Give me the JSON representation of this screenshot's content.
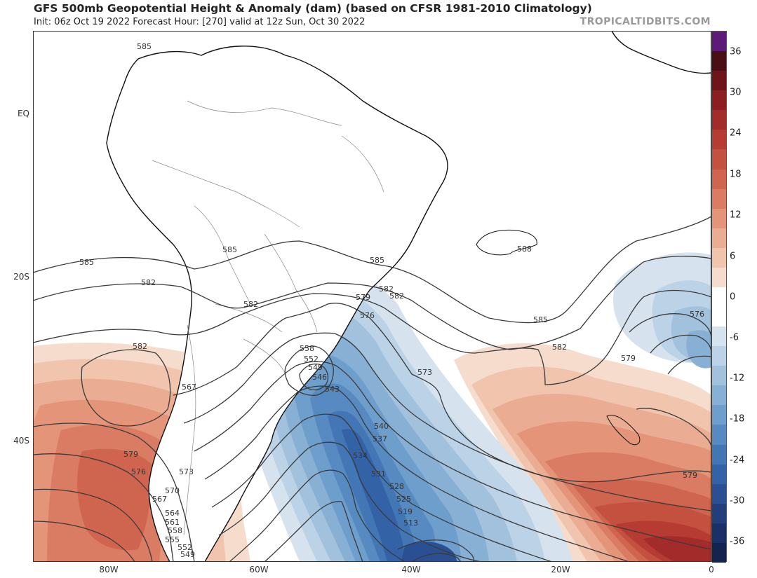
{
  "header": {
    "title": "GFS 500mb Geopotential Height & Anomaly (dam) (based on CFSR 1981-2010 Climatology)",
    "subtitle": "Init: 06z Oct 19 2022   Forecast Hour: [270]   valid at 12z Sun, Oct 30 2022",
    "brand": "TROPICALTIDBITS.COM"
  },
  "axes": {
    "lat_labels": [
      "EQ",
      "20S",
      "40S"
    ],
    "lon_labels": [
      "80W",
      "60W",
      "40W",
      "20W",
      "0"
    ]
  },
  "colorbar": {
    "labels": [
      "36",
      "30",
      "24",
      "18",
      "12",
      "6",
      "0",
      "-6",
      "-12",
      "-18",
      "-24",
      "-30",
      "-36"
    ],
    "colors": [
      "#5e1a78",
      "#4a0f14",
      "#6e141a",
      "#8c1e22",
      "#a32c2a",
      "#b63b33",
      "#c4503f",
      "#d0654f",
      "#da7c63",
      "#e39479",
      "#eaac92",
      "#f0c4ad",
      "#f6dccc",
      "#ffffff",
      "#ffffff",
      "#d6e3ef",
      "#bcd2e6",
      "#a2c1dd",
      "#88b0d4",
      "#6e9ecb",
      "#568ac0",
      "#4276b5",
      "#3462a6",
      "#2a4f92",
      "#223f7c",
      "#1b3066",
      "#15234f"
    ]
  },
  "contour_labels": [
    "585",
    "585",
    "585",
    "585",
    "585",
    "582",
    "582",
    "582",
    "582",
    "582",
    "582",
    "579",
    "579",
    "579",
    "579",
    "576",
    "576",
    "576",
    "573",
    "573",
    "570",
    "567",
    "567",
    "564",
    "561",
    "558",
    "558",
    "555",
    "552",
    "552",
    "549",
    "549",
    "546",
    "543",
    "540",
    "537",
    "534",
    "531",
    "528",
    "525",
    "519",
    "513",
    "588"
  ]
}
